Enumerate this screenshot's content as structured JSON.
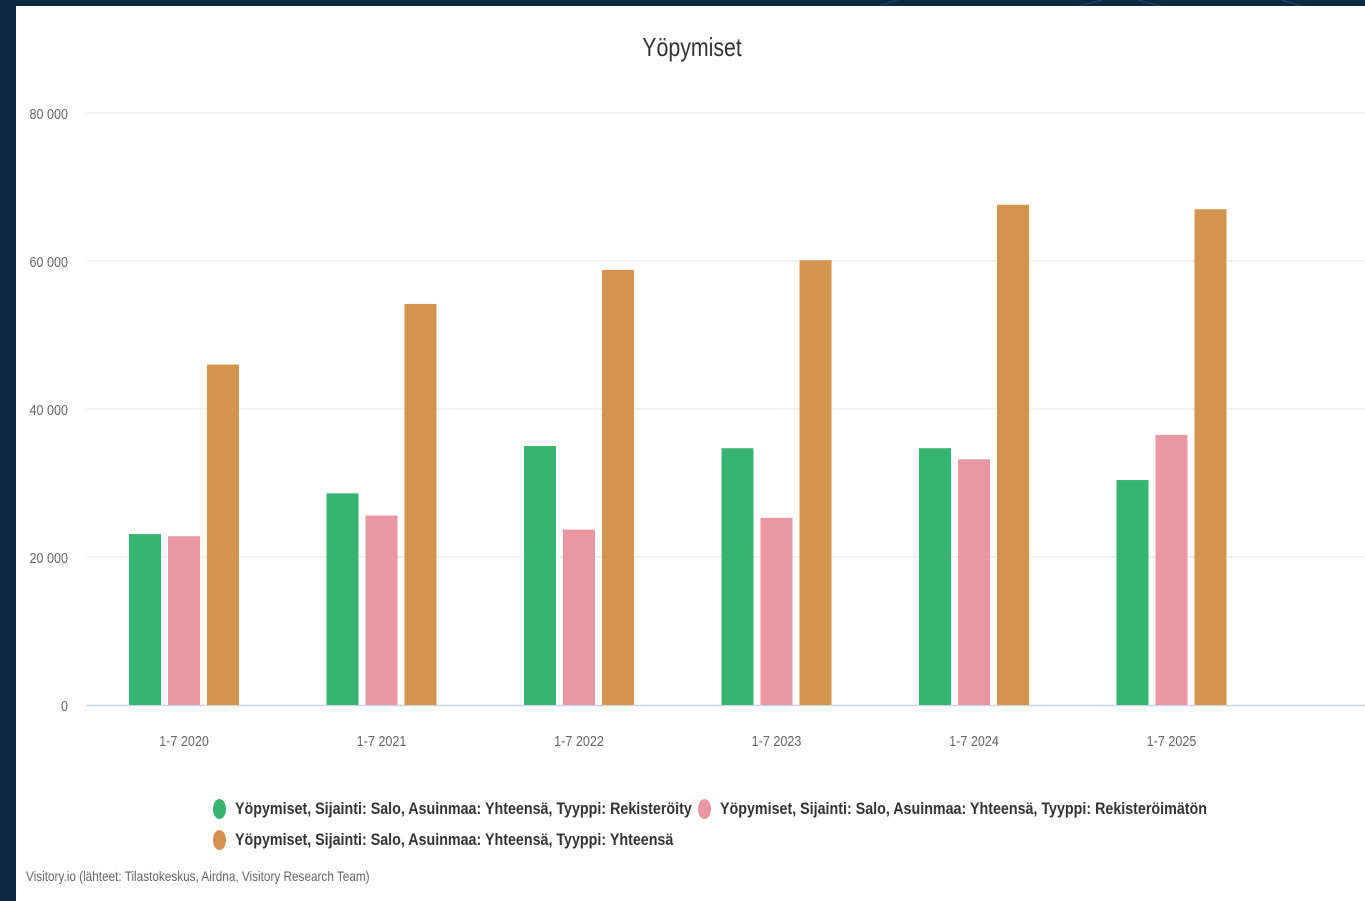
{
  "chart_data": {
    "type": "bar",
    "title": "Yöpymiset",
    "categories": [
      "1-7 2020",
      "1-7 2021",
      "1-7 2022",
      "1-7 2023",
      "1-7 2024",
      "1-7 2025"
    ],
    "series": [
      {
        "name": "Yöpymiset, Sijainti: Salo, Asuinmaa: Yhteensä, Tyyppi: Rekisteröity",
        "color": "#36b572",
        "values": [
          23100,
          28600,
          35000,
          34700,
          34700,
          30400
        ]
      },
      {
        "name": "Yöpymiset, Sijainti: Salo, Asuinmaa: Yhteensä, Tyyppi: Rekisteröimätön",
        "color": "#ea96a3",
        "values": [
          22800,
          25600,
          23700,
          25300,
          33200,
          36500
        ]
      },
      {
        "name": "Yöpymiset, Sijainti: Salo, Asuinmaa: Yhteensä, Tyyppi: Yhteensä",
        "color": "#d5944d",
        "values": [
          46000,
          54200,
          58800,
          60100,
          67600,
          67000
        ]
      }
    ],
    "y_ticks": [
      "0",
      "20 000",
      "40 000",
      "60 000",
      "80 000"
    ],
    "ylim": [
      0,
      80000
    ],
    "grid": true,
    "legend_position": "bottom-center"
  },
  "credits": "Visitory.io (lähteet: Tilastokeskus, Airdna, Visitory Research Team)",
  "colors": {
    "background": "#0d2a44",
    "panel": "#ffffff",
    "gridline": "#e6e6e6",
    "axis_line": "#ccd6eb"
  }
}
